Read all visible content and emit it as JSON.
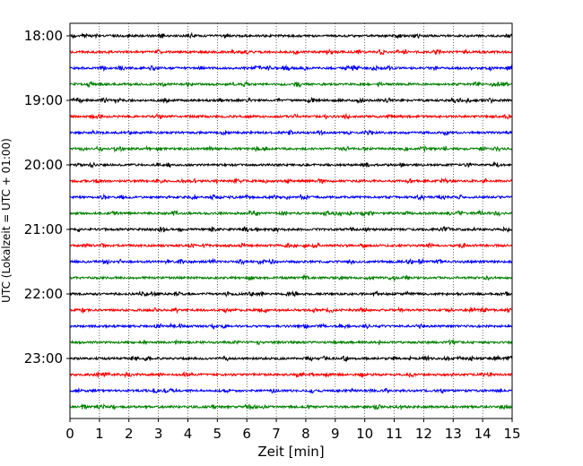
{
  "chart_data": {
    "type": "line",
    "title": "",
    "xlabel": "Zeit  [min]",
    "ylabel": "UTC (Lokalzeit = UTC + 01:00)",
    "xlim": [
      0,
      15
    ],
    "x_ticks": [
      "0",
      "1",
      "2",
      "3",
      "4",
      "5",
      "6",
      "7",
      "8",
      "9",
      "10",
      "11",
      "12",
      "13",
      "14",
      "15"
    ],
    "y_ticks": [
      "18:00",
      "19:00",
      "20:00",
      "21:00",
      "22:00",
      "23:00"
    ],
    "start_time": "18:00",
    "trace_interval_min": 15,
    "trace_count": 24,
    "trace_colors": [
      "#000000",
      "#ff0000",
      "#0000ff",
      "#008000"
    ],
    "grid": "vertical dotted",
    "legend": "none"
  }
}
